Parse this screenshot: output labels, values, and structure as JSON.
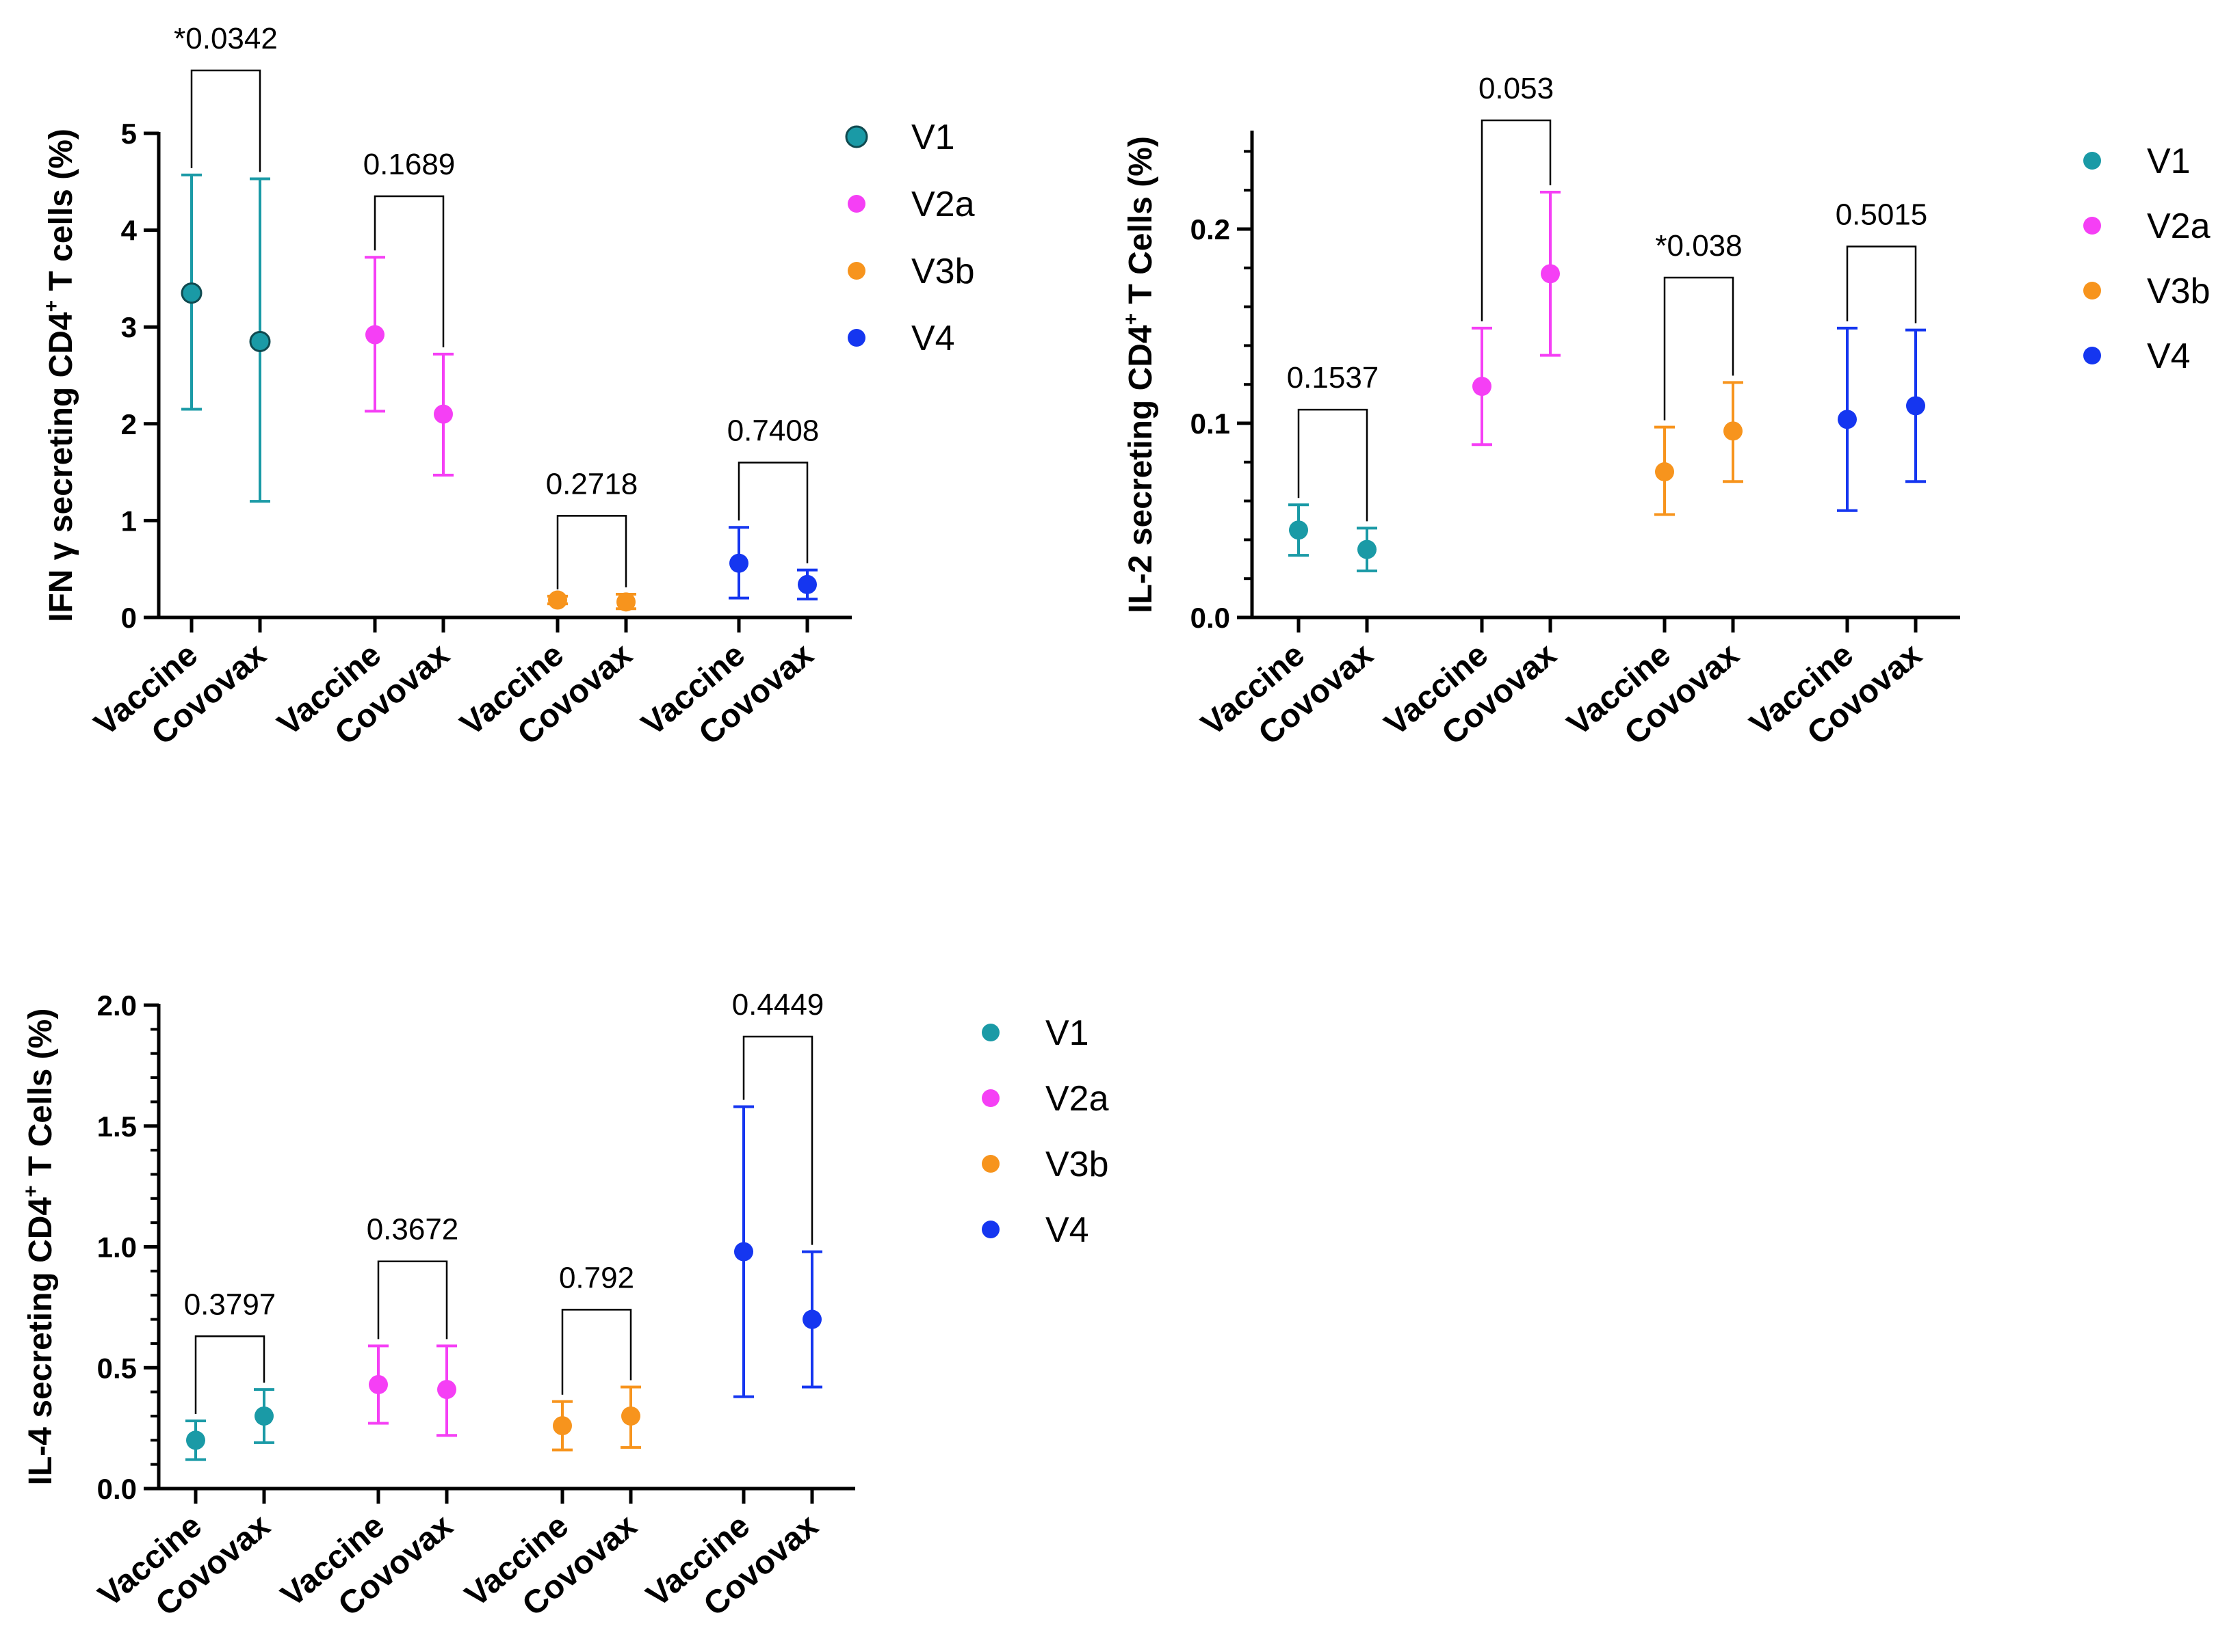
{
  "colors": {
    "V1": "#1a9aa6",
    "V2a": "#f53ff5",
    "V3b": "#f7941d",
    "V4": "#1536f0"
  },
  "chart_data": [
    {
      "type": "scatter",
      "id": "ifn",
      "ylabel_main": "IFN γ secreting CD4",
      "ylabel_sup": "+",
      "ylabel_tail": " T cells (%)",
      "ylim": [
        0,
        5
      ],
      "yticks": [
        "0",
        "1",
        "2",
        "3",
        "4",
        "5"
      ],
      "categories": [
        "Vaccine",
        "Covovax",
        "Vaccine",
        "Covovax",
        "Vaccine",
        "Covovax",
        "Vaccine",
        "Covovax"
      ],
      "points": [
        {
          "series": "V1",
          "mean": 3.35,
          "lo": 2.15,
          "hi": 4.57
        },
        {
          "series": "V1",
          "mean": 2.85,
          "lo": 1.2,
          "hi": 4.53
        },
        {
          "series": "V2a",
          "mean": 2.92,
          "lo": 2.13,
          "hi": 3.72
        },
        {
          "series": "V2a",
          "mean": 2.1,
          "lo": 1.47,
          "hi": 2.72
        },
        {
          "series": "V3b",
          "mean": 0.18,
          "lo": 0.14,
          "hi": 0.22
        },
        {
          "series": "V3b",
          "mean": 0.16,
          "lo": 0.09,
          "hi": 0.24
        },
        {
          "series": "V4",
          "mean": 0.56,
          "lo": 0.2,
          "hi": 0.93
        },
        {
          "series": "V4",
          "mean": 0.34,
          "lo": 0.19,
          "hi": 0.49
        }
      ],
      "comparisons": [
        {
          "pair": 0,
          "y": 5.65,
          "label": "*0.0342"
        },
        {
          "pair": 1,
          "y": 4.35,
          "label": "0.1689"
        },
        {
          "pair": 2,
          "y": 1.05,
          "label": "0.2718"
        },
        {
          "pair": 3,
          "y": 1.6,
          "label": "0.7408"
        }
      ],
      "legend": [
        "V1",
        "V2a",
        "V3b",
        "V4"
      ]
    },
    {
      "type": "scatter",
      "id": "il2",
      "ylabel_main": "IL-2 secreting CD4",
      "ylabel_sup": "+",
      "ylabel_tail": " T Cells (%)",
      "ylim": [
        0,
        0.25
      ],
      "yticks": [
        "0.0",
        "0.1",
        "0.2"
      ],
      "categories": [
        "Vaccine",
        "Covovax",
        "Vaccine",
        "Covovax",
        "Vaccine",
        "Covovax",
        "Vaccine",
        "Covovax"
      ],
      "points": [
        {
          "series": "V1",
          "mean": 0.045,
          "lo": 0.032,
          "hi": 0.058
        },
        {
          "series": "V1",
          "mean": 0.035,
          "lo": 0.024,
          "hi": 0.046
        },
        {
          "series": "V2a",
          "mean": 0.119,
          "lo": 0.089,
          "hi": 0.149
        },
        {
          "series": "V2a",
          "mean": 0.177,
          "lo": 0.135,
          "hi": 0.219
        },
        {
          "series": "V3b",
          "mean": 0.075,
          "lo": 0.053,
          "hi": 0.098
        },
        {
          "series": "V3b",
          "mean": 0.096,
          "lo": 0.07,
          "hi": 0.121
        },
        {
          "series": "V4",
          "mean": 0.102,
          "lo": 0.055,
          "hi": 0.149
        },
        {
          "series": "V4",
          "mean": 0.109,
          "lo": 0.07,
          "hi": 0.148
        }
      ],
      "comparisons": [
        {
          "pair": 0,
          "y": 0.107,
          "label": "0.1537"
        },
        {
          "pair": 1,
          "y": 0.256,
          "label": "0.053"
        },
        {
          "pair": 2,
          "y": 0.175,
          "label": "*0.038"
        },
        {
          "pair": 3,
          "y": 0.191,
          "label": "0.5015"
        }
      ],
      "legend": [
        "V1",
        "V2a",
        "V3b",
        "V4"
      ]
    },
    {
      "type": "scatter",
      "id": "il4",
      "ylabel_main": "IL-4 secreting CD4",
      "ylabel_sup": "+",
      "ylabel_tail": " T Cells (%)",
      "ylim": [
        0,
        2.0
      ],
      "yticks": [
        "0.0",
        "0.5",
        "1.0",
        "1.5",
        "2.0"
      ],
      "categories": [
        "Vaccine",
        "Covovax",
        "Vaccine",
        "Covovax",
        "Vaccine",
        "Covovax",
        "Vaccine",
        "Covovax"
      ],
      "points": [
        {
          "series": "V1",
          "mean": 0.2,
          "lo": 0.12,
          "hi": 0.28
        },
        {
          "series": "V1",
          "mean": 0.3,
          "lo": 0.19,
          "hi": 0.41
        },
        {
          "series": "V2a",
          "mean": 0.43,
          "lo": 0.27,
          "hi": 0.59
        },
        {
          "series": "V2a",
          "mean": 0.41,
          "lo": 0.22,
          "hi": 0.59
        },
        {
          "series": "V3b",
          "mean": 0.26,
          "lo": 0.16,
          "hi": 0.36
        },
        {
          "series": "V3b",
          "mean": 0.3,
          "lo": 0.17,
          "hi": 0.42
        },
        {
          "series": "V4",
          "mean": 0.98,
          "lo": 0.38,
          "hi": 1.58
        },
        {
          "series": "V4",
          "mean": 0.7,
          "lo": 0.42,
          "hi": 0.98
        }
      ],
      "comparisons": [
        {
          "pair": 0,
          "y": 0.63,
          "label": "0.3797"
        },
        {
          "pair": 1,
          "y": 0.94,
          "label": "0.3672"
        },
        {
          "pair": 2,
          "y": 0.74,
          "label": "0.792"
        },
        {
          "pair": 3,
          "y": 1.87,
          "label": "0.4449"
        }
      ],
      "legend": [
        "V1",
        "V2a",
        "V3b",
        "V4"
      ]
    }
  ]
}
